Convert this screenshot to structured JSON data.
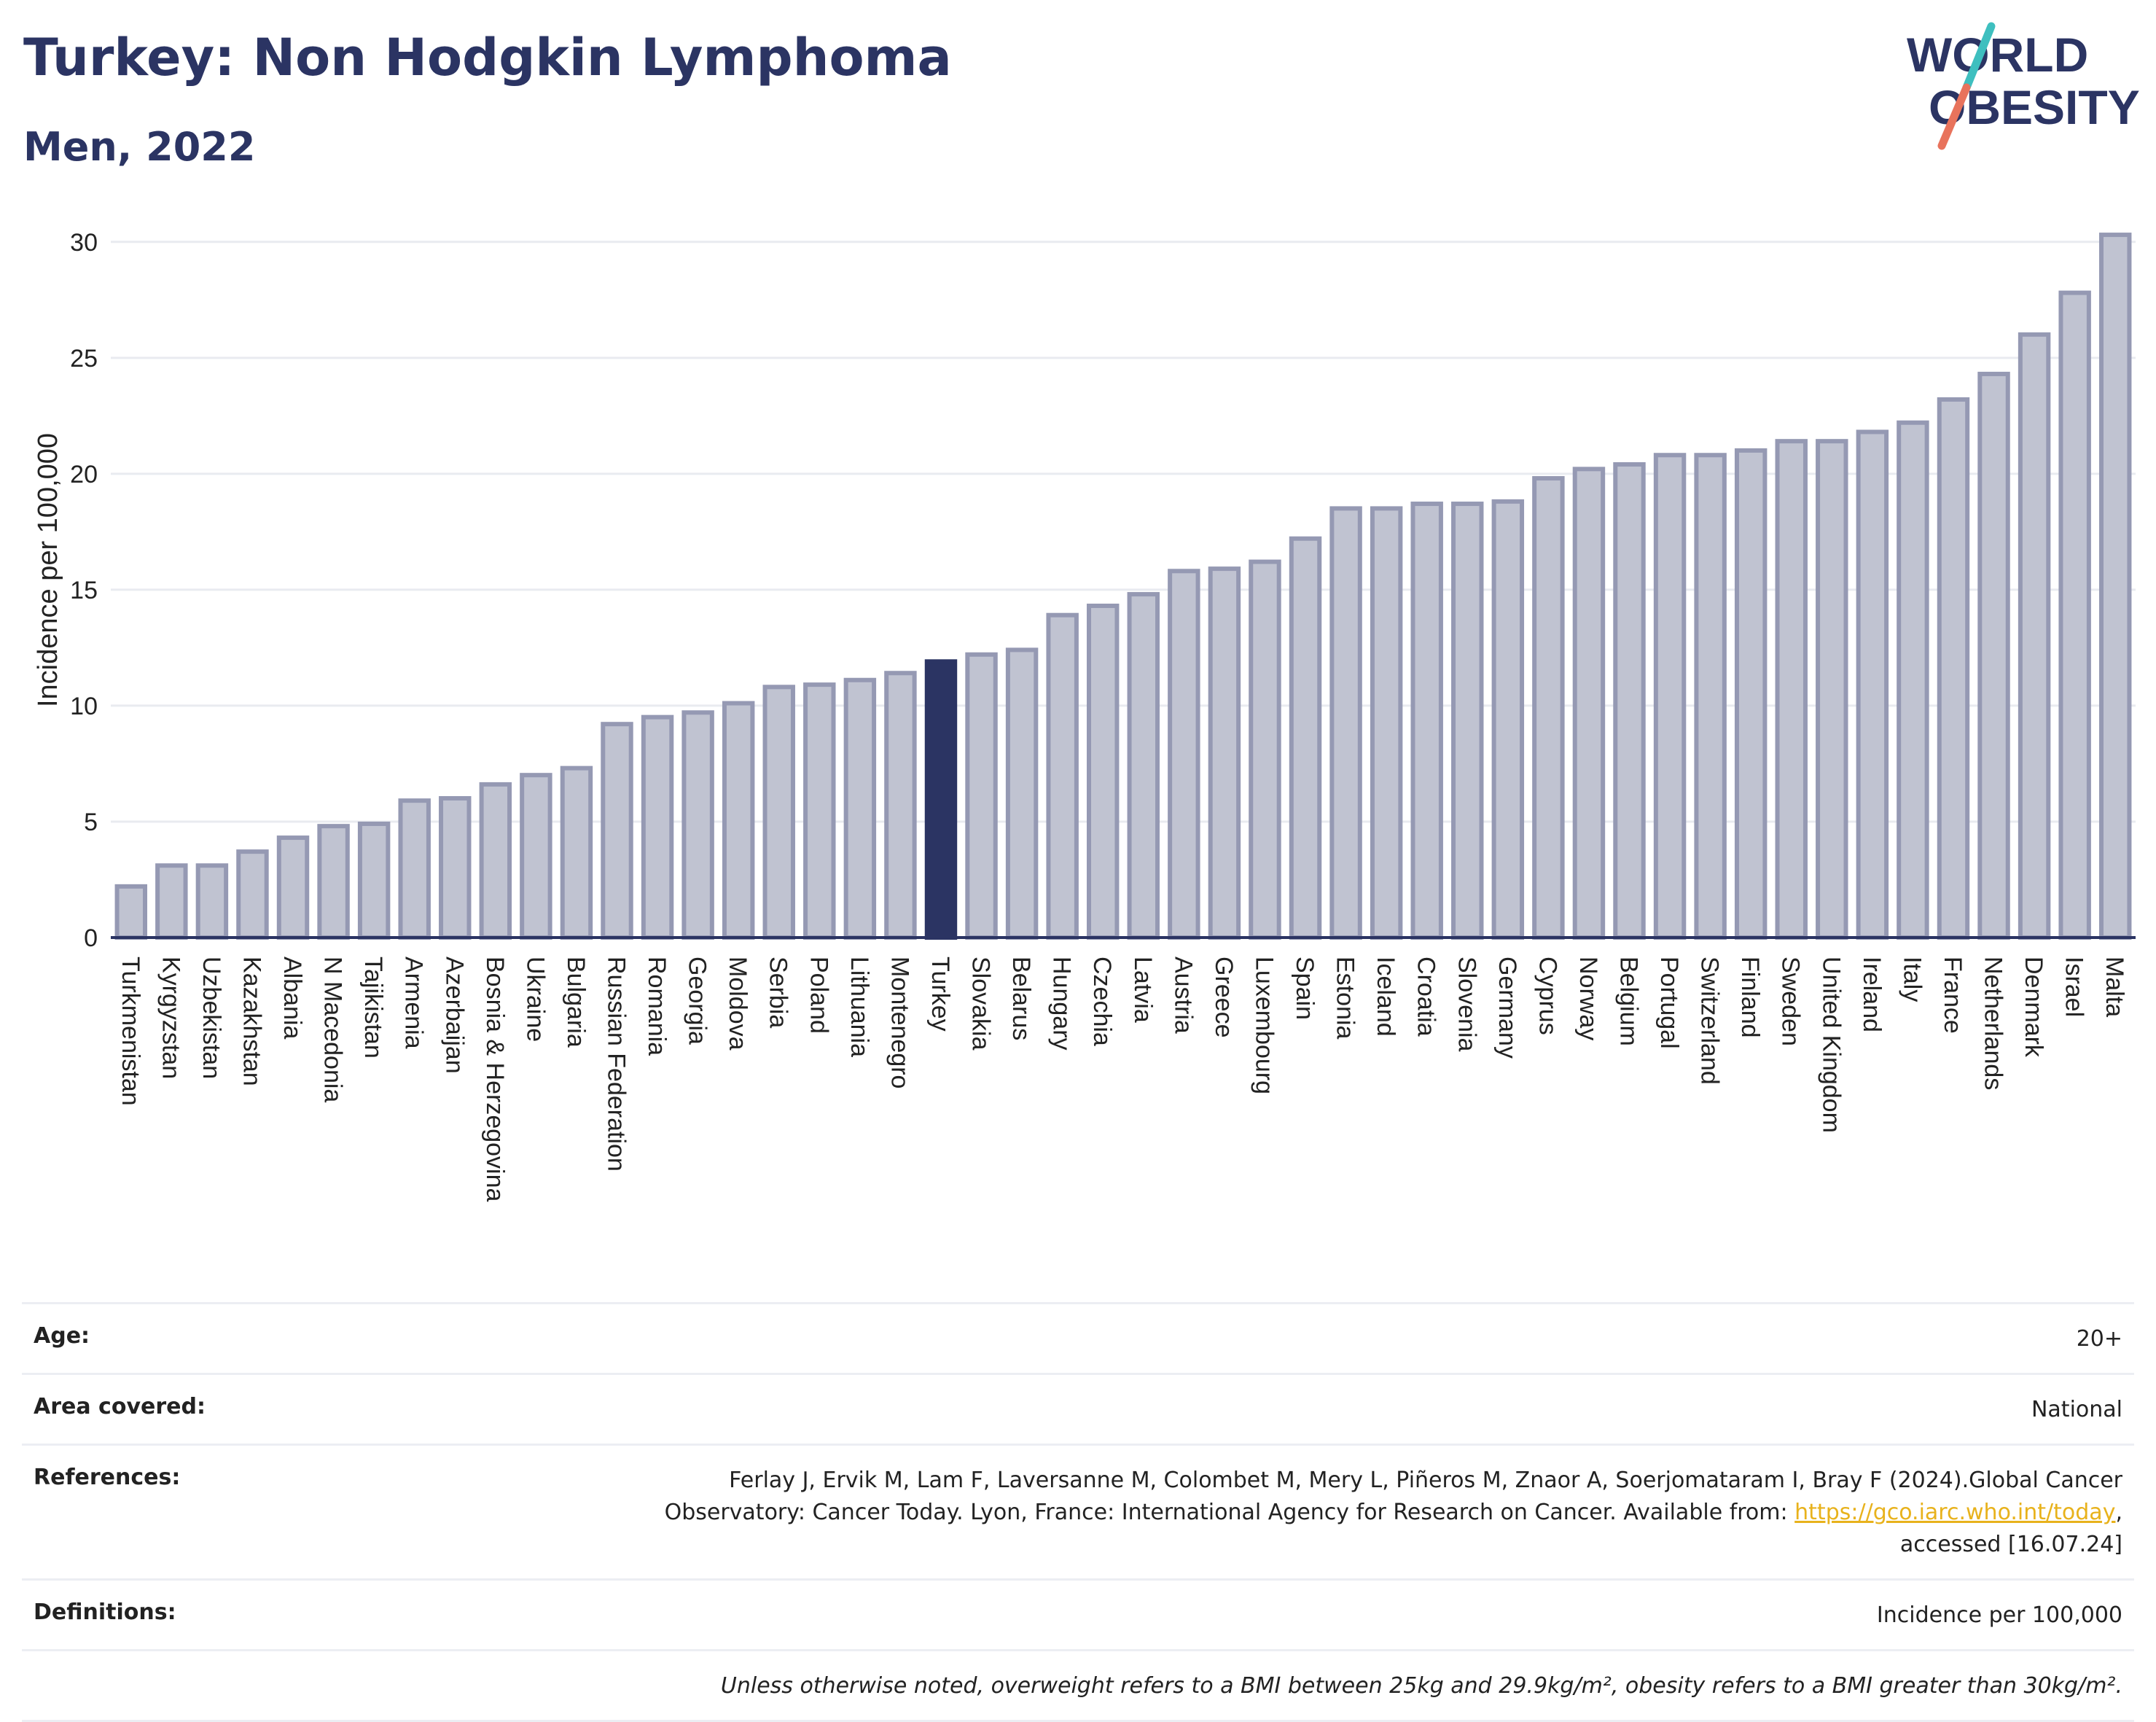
{
  "header": {
    "title": "Turkey: Non Hodgkin Lymphoma",
    "subtitle": "Men, 2022",
    "logo_line1": "WORLD",
    "logo_line2": "OBESITY"
  },
  "colors": {
    "bar": "#c0c3d1",
    "bar_stroke": "#9599b3",
    "highlight": "#2b3463",
    "axis": "#2b3463",
    "grid": "#e9ebf0",
    "logo_text": "#2b3463",
    "logo_slash_top": "#3ebfbf",
    "logo_slash_bottom": "#e8735c"
  },
  "chart_data": {
    "type": "bar",
    "ylabel": "Incidence per 100,000",
    "ylim": [
      0,
      31
    ],
    "yticks": [
      0,
      5,
      10,
      15,
      20,
      25,
      30
    ],
    "highlight": "Turkey",
    "grid": true,
    "categories": [
      "Turkmenistan",
      "Kyrgyzstan",
      "Uzbekistan",
      "Kazakhstan",
      "Albania",
      "N Macedonia",
      "Tajikistan",
      "Armenia",
      "Azerbaijan",
      "Bosnia & Herzegovina",
      "Ukraine",
      "Bulgaria",
      "Russian Federation",
      "Romania",
      "Georgia",
      "Moldova",
      "Serbia",
      "Poland",
      "Lithuania",
      "Montenegro",
      "Turkey",
      "Slovakia",
      "Belarus",
      "Hungary",
      "Czechia",
      "Latvia",
      "Austria",
      "Greece",
      "Luxembourg",
      "Spain",
      "Estonia",
      "Iceland",
      "Croatia",
      "Slovenia",
      "Germany",
      "Cyprus",
      "Norway",
      "Belgium",
      "Portugal",
      "Switzerland",
      "Finland",
      "Sweden",
      "United Kingdom",
      "Ireland",
      "Italy",
      "France",
      "Netherlands",
      "Denmark",
      "Israel",
      "Malta"
    ],
    "values": [
      2.3,
      3.2,
      3.2,
      3.8,
      4.4,
      4.9,
      5.0,
      6.0,
      6.1,
      6.7,
      7.1,
      7.4,
      9.3,
      9.6,
      9.8,
      10.2,
      10.9,
      11.0,
      11.2,
      11.5,
      12.0,
      12.3,
      12.5,
      14.0,
      14.4,
      14.9,
      15.9,
      16.0,
      16.3,
      17.3,
      18.6,
      18.6,
      18.8,
      18.8,
      18.9,
      19.9,
      20.3,
      20.5,
      20.9,
      20.9,
      21.1,
      21.5,
      21.5,
      21.9,
      22.3,
      23.3,
      24.4,
      26.1,
      27.9,
      30.4
    ]
  },
  "info": {
    "age_label": "Age:",
    "age_value": "20+",
    "area_label": "Area covered:",
    "area_value": "National",
    "references_label": "References:",
    "references_line1": "Ferlay J, Ervik M, Lam F, Laversanne M, Colombet M, Mery L, Piñeros M, Znaor A, Soerjomataram I, Bray F (2024).Global Cancer",
    "references_line2": "Observatory: Cancer Today. Lyon, France: International Agency for Research on Cancer. Available from: ",
    "references_link": "https://gco.iarc.who.int/today",
    "references_line3": "accessed [16.07.24]",
    "definitions_label": "Definitions:",
    "definitions_value": "Incidence per 100,000",
    "note": "Unless otherwise noted, overweight refers to a BMI between 25kg and 29.9kg/m², obesity refers to a BMI greater than 30kg/m²."
  }
}
